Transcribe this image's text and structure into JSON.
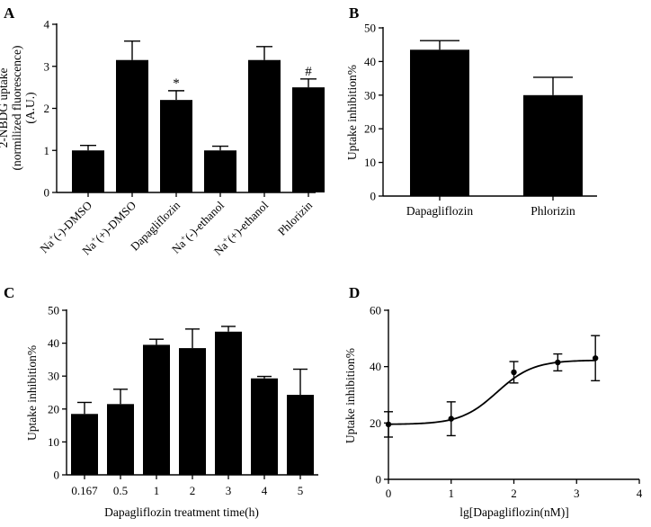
{
  "chart_data": [
    {
      "panel": "A",
      "type": "bar",
      "ylabel": [
        "2-NBDG uptake",
        "(normilized fluorescence)",
        "(A.U.)"
      ],
      "ylim": [
        0,
        4
      ],
      "yticks": [
        0,
        1,
        2,
        3,
        4
      ],
      "categories": [
        {
          "base": "Na",
          "sup": "+",
          "rest": "(-)-DMSO"
        },
        {
          "base": "Na",
          "sup": "+",
          "rest": "(+)-DMSO"
        },
        {
          "base": "Dapagliflozin",
          "sup": "",
          "rest": ""
        },
        {
          "base": "Na",
          "sup": "+",
          "rest": "(-)-ethanol"
        },
        {
          "base": "Na",
          "sup": "+",
          "rest": "(+)-ethanol"
        },
        {
          "base": "Phlorizin",
          "sup": "",
          "rest": ""
        }
      ],
      "values": [
        1.0,
        3.15,
        2.2,
        1.0,
        3.15,
        2.5
      ],
      "errors": [
        0.12,
        0.45,
        0.22,
        0.1,
        0.32,
        0.2
      ],
      "annotations": [
        "",
        "",
        "*",
        "",
        "",
        "#"
      ]
    },
    {
      "panel": "B",
      "type": "bar",
      "ylabel": "Uptake inhibition%",
      "ylim": [
        0,
        50
      ],
      "yticks": [
        0,
        10,
        20,
        30,
        40,
        50
      ],
      "categories": [
        "Dapagliflozin",
        "Phlorizin"
      ],
      "values": [
        43.5,
        30.0
      ],
      "errors": [
        2.7,
        5.3
      ]
    },
    {
      "panel": "C",
      "type": "bar",
      "xlabel": "Dapagliflozin treatment time(h)",
      "ylabel": "Uptake inhibition%",
      "ylim": [
        0,
        50
      ],
      "yticks": [
        0,
        10,
        20,
        30,
        40,
        50
      ],
      "categories": [
        "0.167",
        "0.5",
        "1",
        "2",
        "3",
        "4",
        "5"
      ],
      "values": [
        18.5,
        21.5,
        39.5,
        38.5,
        43.5,
        29.3,
        24.3
      ],
      "errors": [
        3.5,
        4.5,
        1.7,
        5.8,
        1.6,
        0.6,
        7.8
      ]
    },
    {
      "panel": "D",
      "type": "scatter",
      "xlabel": "lg[Dapagliflozin(nM)]",
      "ylabel": "Uptake inhibition%",
      "xlim": [
        0,
        4
      ],
      "ylim": [
        0,
        60
      ],
      "xticks": [
        0,
        1,
        2,
        3,
        4
      ],
      "yticks": [
        0,
        20,
        40,
        60
      ],
      "x": [
        0,
        1,
        2,
        2.7,
        3.3
      ],
      "y": [
        19.5,
        21.5,
        38.0,
        41.5,
        43.0
      ],
      "errors": [
        4.5,
        6.0,
        3.8,
        3.0,
        8.0
      ],
      "fit": {
        "model": "sigmoidal dose-response",
        "bottom": 19.5,
        "top": 42.3,
        "logEC50": 1.73,
        "hill": 1.5
      }
    }
  ]
}
